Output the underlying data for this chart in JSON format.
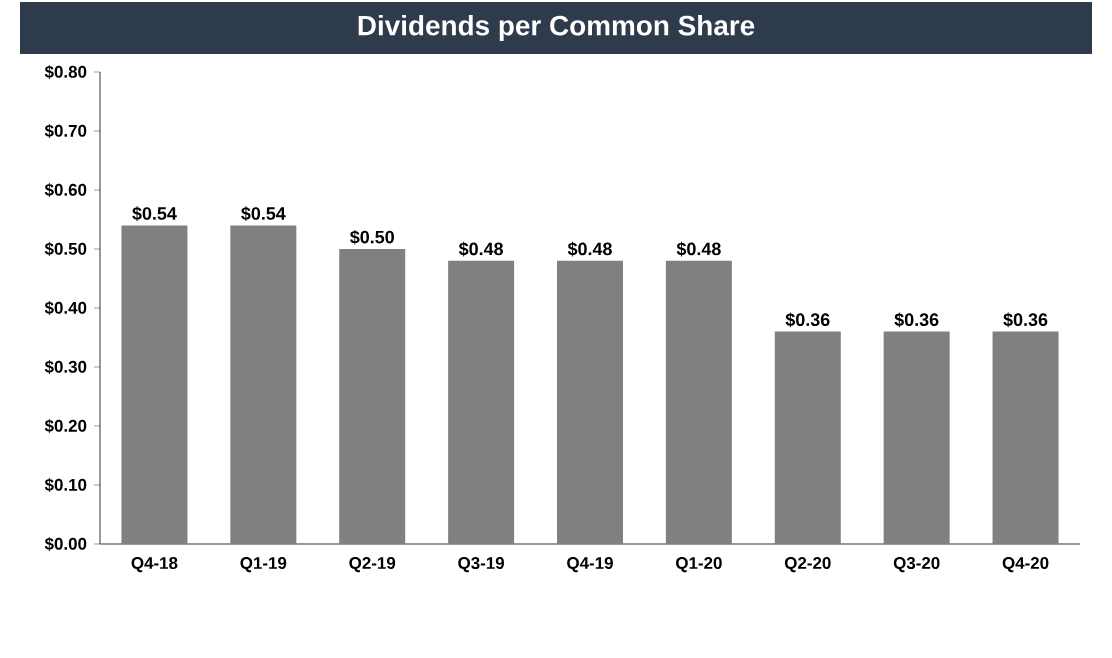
{
  "chart_data": {
    "type": "bar",
    "title": "Dividends per Common Share",
    "categories": [
      "Q4-18",
      "Q1-19",
      "Q2-19",
      "Q3-19",
      "Q4-19",
      "Q1-20",
      "Q2-20",
      "Q3-20",
      "Q4-20"
    ],
    "values": [
      0.54,
      0.54,
      0.5,
      0.48,
      0.48,
      0.48,
      0.36,
      0.36,
      0.36
    ],
    "value_labels": [
      "$0.54",
      "$0.54",
      "$0.50",
      "$0.48",
      "$0.48",
      "$0.48",
      "$0.36",
      "$0.36",
      "$0.36"
    ],
    "color": "#808080",
    "ylim": [
      0,
      0.8
    ],
    "yticks": [
      {
        "value": 0,
        "label": "$0.00"
      },
      {
        "value": 0.1,
        "label": "$0.10"
      },
      {
        "value": 0.2,
        "label": "$0.20"
      },
      {
        "value": 0.3,
        "label": "$0.30"
      },
      {
        "value": 0.4,
        "label": "$0.40"
      },
      {
        "value": 0.5,
        "label": "$0.50"
      },
      {
        "value": 0.6,
        "label": "$0.60"
      },
      {
        "value": 0.7,
        "label": "$0.70"
      },
      {
        "value": 0.8,
        "label": "$0.80"
      }
    ]
  }
}
